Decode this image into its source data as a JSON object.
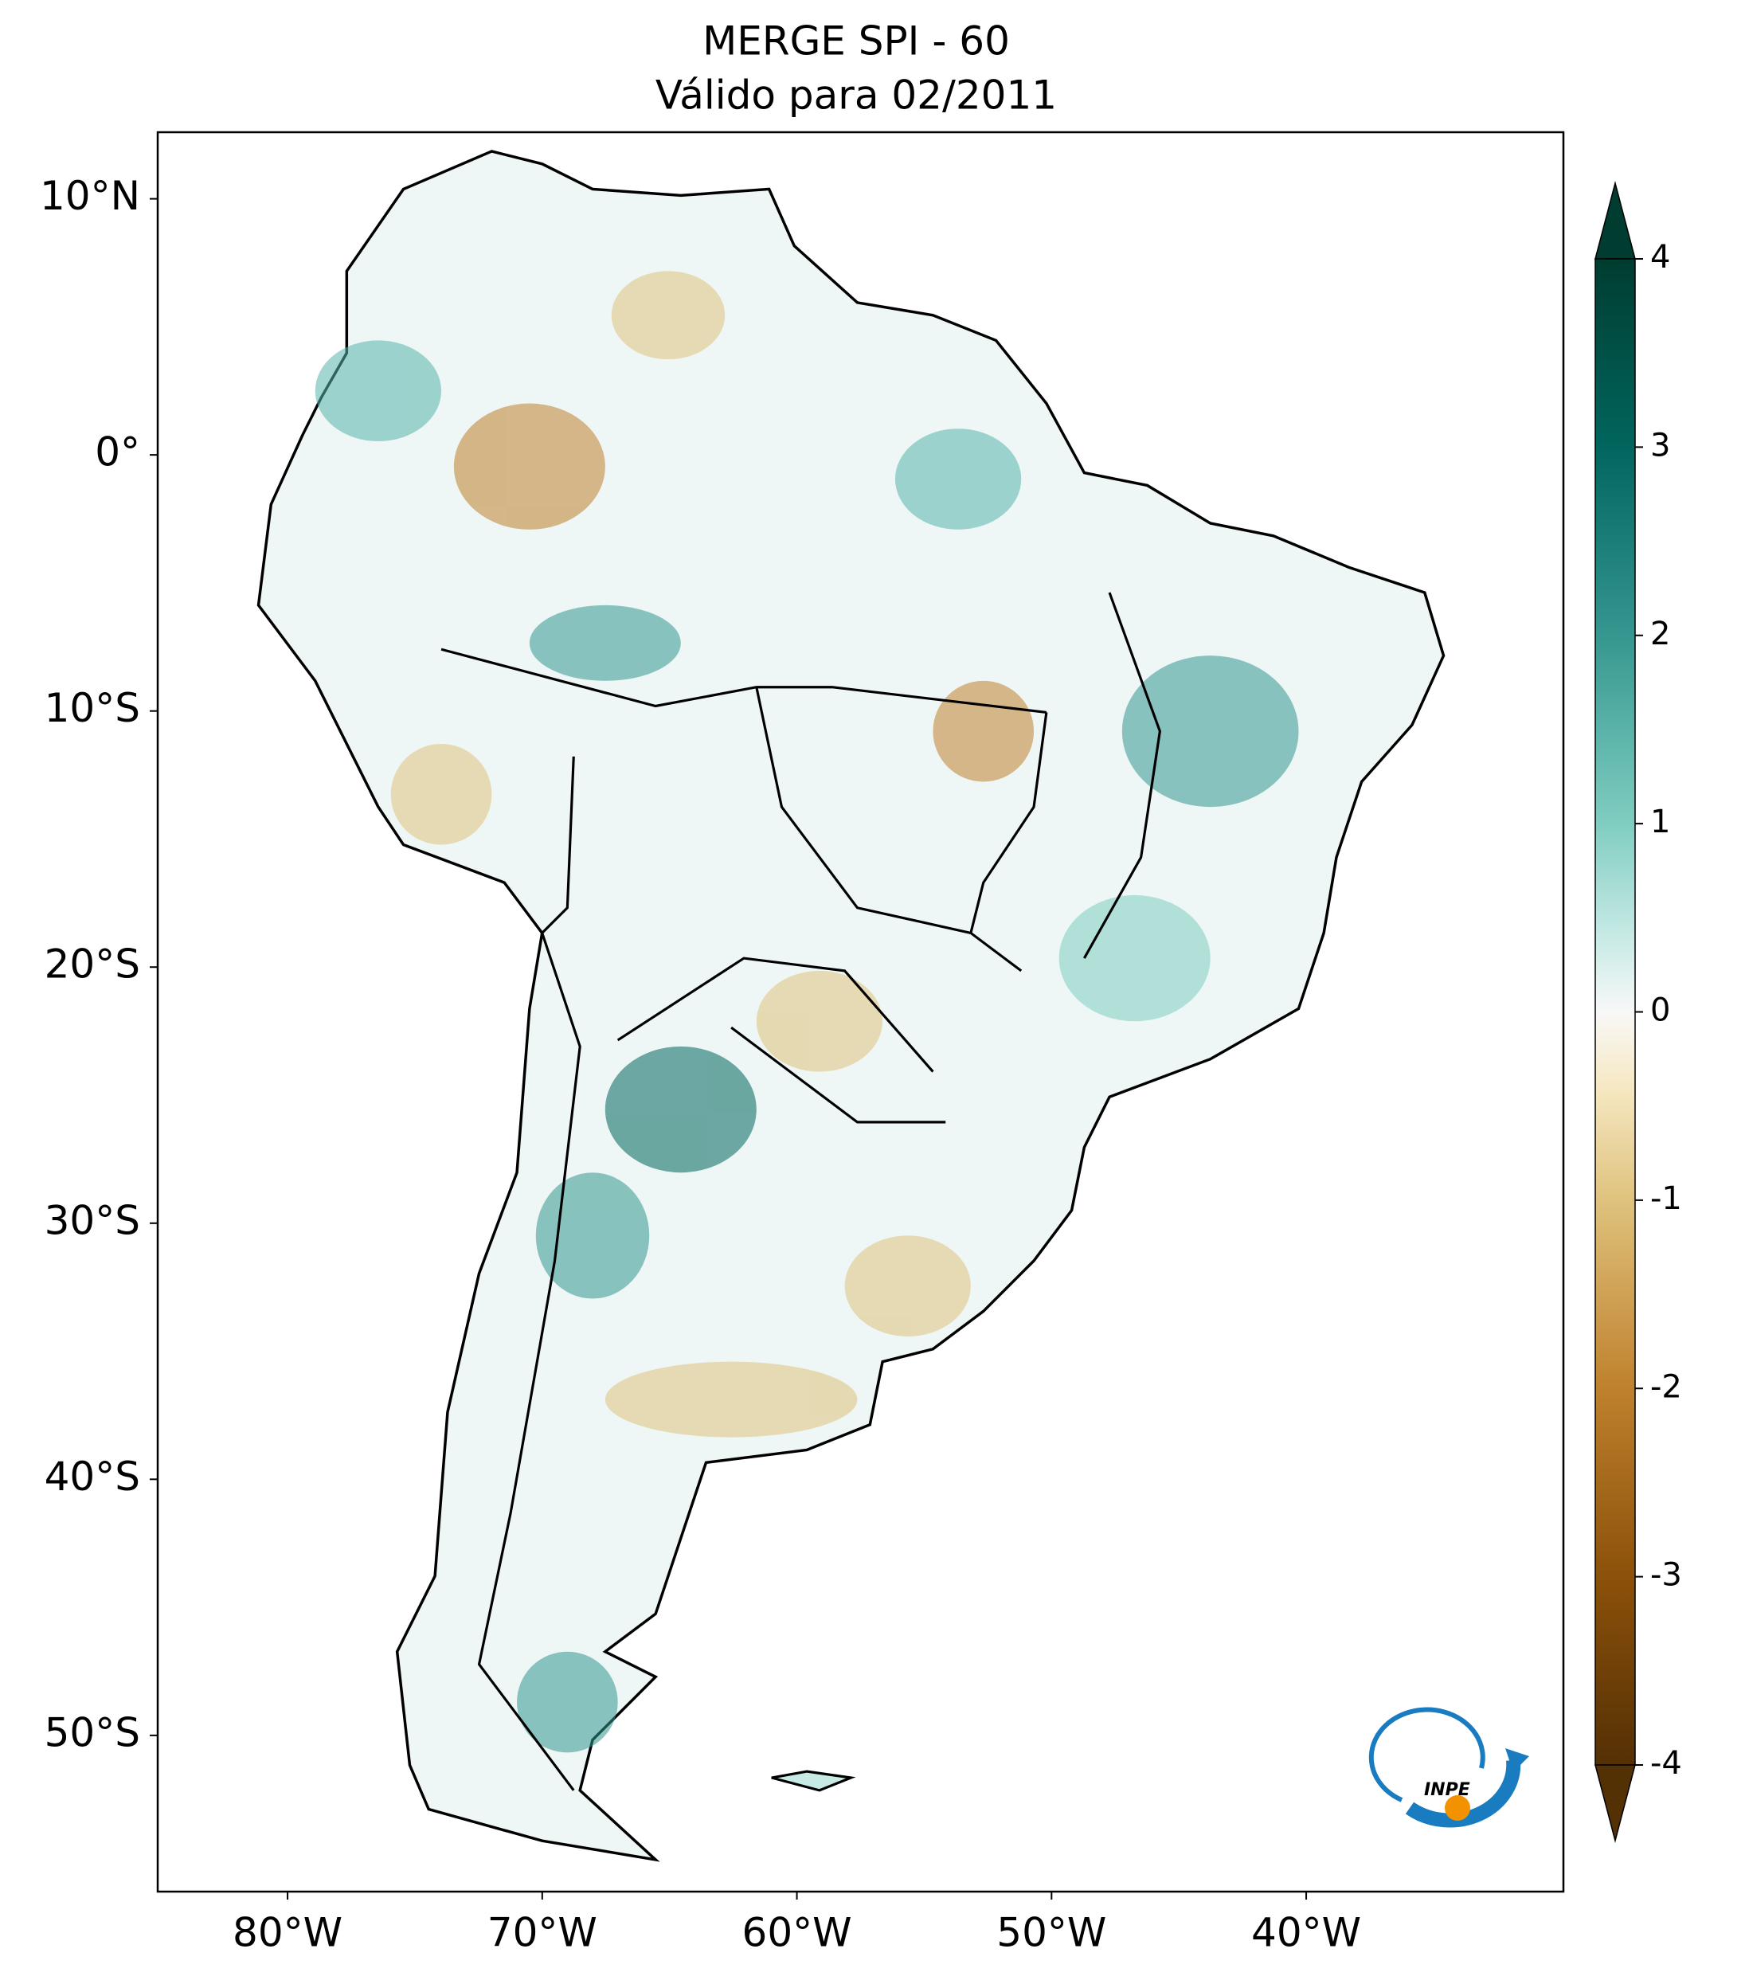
{
  "title": [
    "MERGE   SPI - 60",
    "Válido para 02/2011"
  ],
  "map": {
    "lonlim": [
      -85.1,
      -29.9
    ],
    "latlim": [
      -56.1,
      12.6
    ],
    "lat_ticks": [
      {
        "value": 10,
        "label": "10°N"
      },
      {
        "value": 0,
        "label": "0°"
      },
      {
        "value": -10,
        "label": "10°S"
      },
      {
        "value": -20,
        "label": "20°S"
      },
      {
        "value": -30,
        "label": "30°S"
      },
      {
        "value": -40,
        "label": "40°S"
      },
      {
        "value": -50,
        "label": "50°S"
      }
    ],
    "lon_ticks": [
      {
        "value": -80,
        "label": "80°W"
      },
      {
        "value": -70,
        "label": "70°W"
      },
      {
        "value": -60,
        "label": "60°W"
      },
      {
        "value": -50,
        "label": "50°W"
      },
      {
        "value": -40,
        "label": "40°W"
      }
    ]
  },
  "colorbar": {
    "lim": [
      -4,
      4
    ],
    "ticks": [
      4,
      3,
      2,
      1,
      0,
      -1,
      -2,
      -3,
      -4
    ]
  },
  "logo": "INPE"
}
